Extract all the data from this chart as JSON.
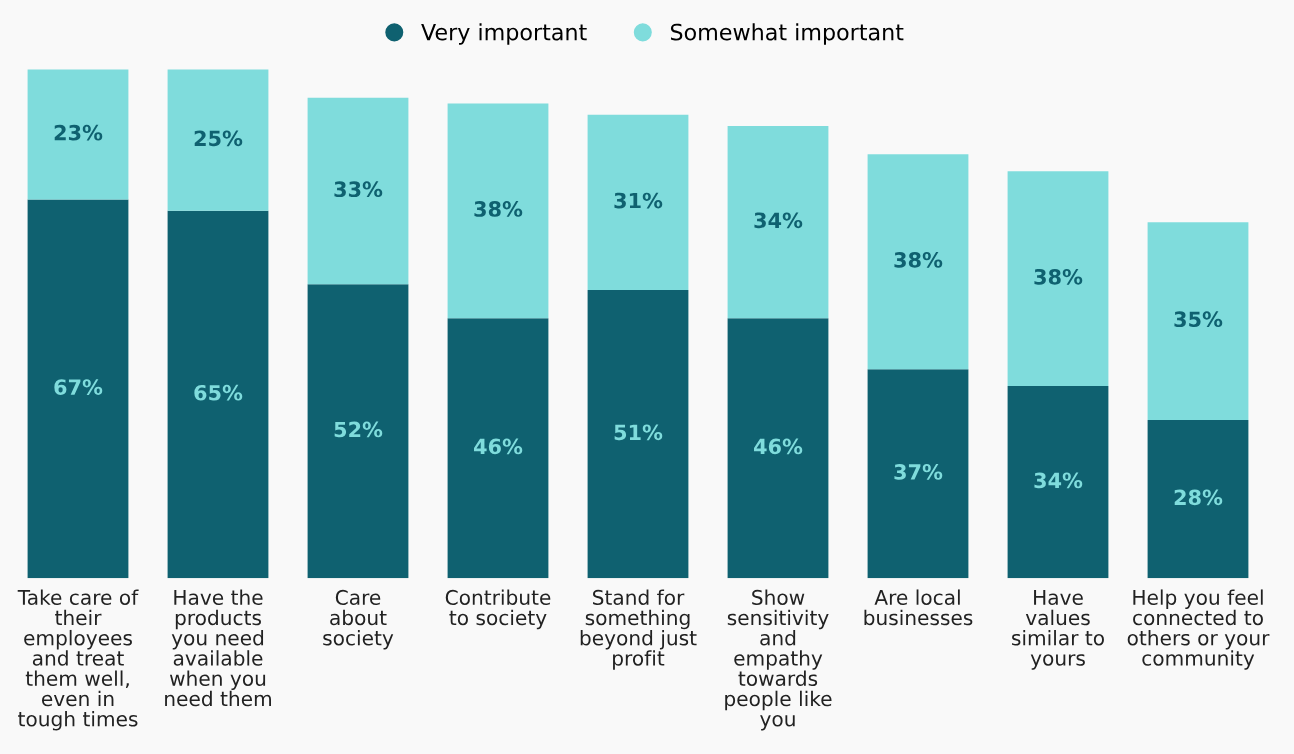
{
  "chart_data": {
    "type": "bar",
    "stacked": true,
    "legend": "top",
    "grid": false,
    "categories": [
      "Take care of\ntheir\nemployees\nand treat\nthem well,\neven in\ntough times",
      "Have the\nproducts\nyou need\navailable\nwhen you\nneed them",
      "Care\nabout\nsociety",
      "Contribute\nto society",
      "Stand for\nsomething\nbeyond just\nprofit",
      "Show\nsensitivity\nand\nempathy\ntowards\npeople like\nyou",
      "Are local\nbusinesses",
      "Have\nvalues\nsimilar to\nyours",
      "Help you feel\nconnected to\nothers or your\ncommunity"
    ],
    "series": [
      {
        "name": "Very important",
        "color": "#0f6170",
        "values": [
          67,
          65,
          52,
          46,
          51,
          46,
          37,
          34,
          28
        ],
        "value_labels": [
          "67%",
          "65%",
          "52%",
          "46%",
          "51%",
          "46%",
          "37%",
          "34%",
          "28%"
        ]
      },
      {
        "name": "Somewhat important",
        "color": "#7fdcdc",
        "values": [
          23,
          25,
          33,
          38,
          31,
          34,
          38,
          38,
          35
        ],
        "value_labels": [
          "23%",
          "25%",
          "33%",
          "38%",
          "31%",
          "34%",
          "38%",
          "38%",
          "35%"
        ]
      }
    ]
  }
}
